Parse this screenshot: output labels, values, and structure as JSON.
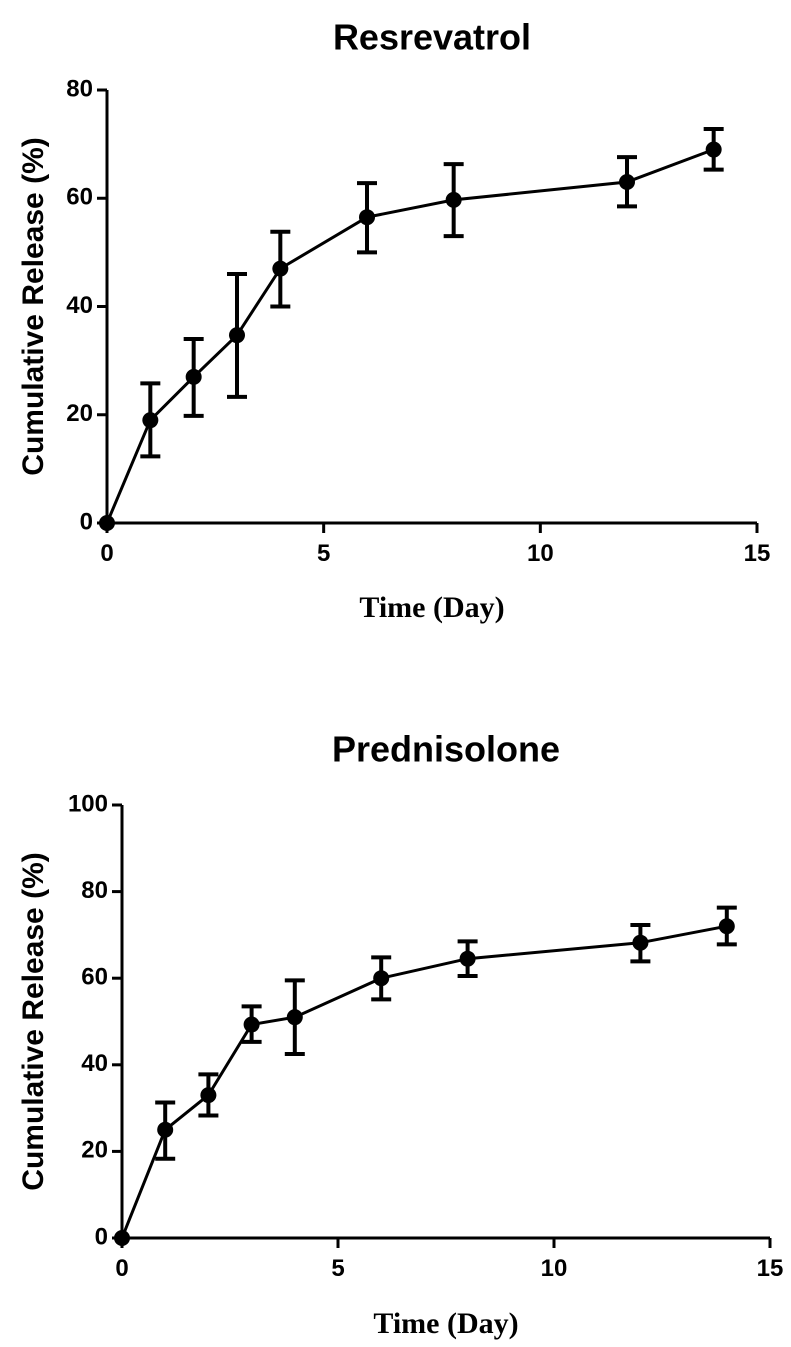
{
  "chart_data": [
    {
      "type": "line",
      "title": "Resrevatrol",
      "xlabel": "Time (Day)",
      "ylabel": "Cumulative Release (%)",
      "xlim": [
        0,
        15
      ],
      "ylim": [
        0,
        80
      ],
      "xticks": [
        0,
        5,
        10,
        15
      ],
      "yticks": [
        0,
        20,
        40,
        60,
        80
      ],
      "grid": false,
      "series": [
        {
          "name": "Resrevatrol",
          "x": [
            0,
            1,
            2,
            3,
            4,
            6,
            8,
            12,
            14
          ],
          "values": [
            0,
            19,
            27,
            34.7,
            47,
            56.5,
            59.7,
            63,
            69
          ],
          "err_low": [
            0,
            12.3,
            19.8,
            23.3,
            40,
            50,
            53,
            58.5,
            65.3
          ],
          "err_high": [
            0,
            25.8,
            34,
            46,
            53.8,
            62.8,
            66.3,
            67.6,
            72.8
          ]
        }
      ]
    },
    {
      "type": "line",
      "title": "Prednisolone",
      "xlabel": "Time (Day)",
      "ylabel": "Cumulative Release (%)",
      "xlim": [
        0,
        15
      ],
      "ylim": [
        0,
        100
      ],
      "xticks": [
        0,
        5,
        10,
        15
      ],
      "yticks": [
        0,
        20,
        40,
        60,
        80,
        100
      ],
      "grid": false,
      "series": [
        {
          "name": "Prednisolone",
          "x": [
            0,
            1,
            2,
            3,
            4,
            6,
            8,
            12,
            14
          ],
          "values": [
            0,
            25,
            33,
            49.3,
            51,
            60,
            64.5,
            68.2,
            72
          ],
          "err_low": [
            0,
            18.3,
            28.3,
            45.3,
            42.5,
            55.1,
            60.5,
            63.9,
            67.8
          ],
          "err_high": [
            0,
            31.3,
            37.8,
            53.5,
            59.5,
            64.8,
            68.5,
            72.3,
            76.3
          ]
        }
      ]
    }
  ]
}
